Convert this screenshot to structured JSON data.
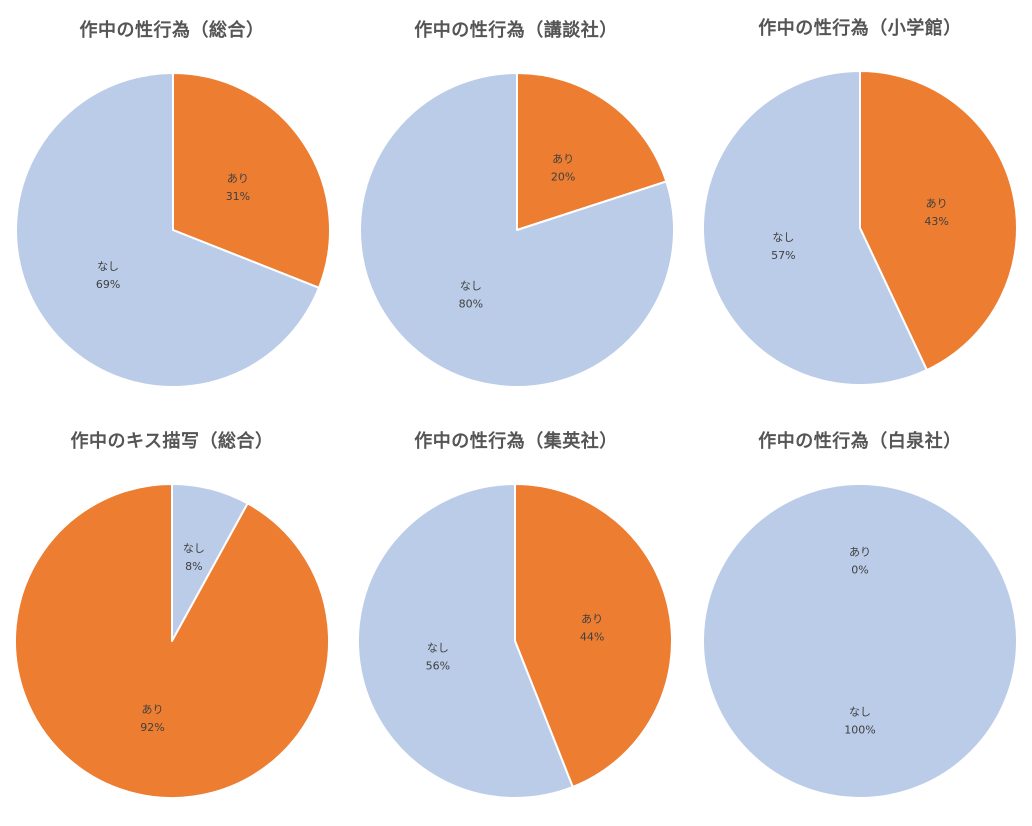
{
  "colors": {
    "ari": "#ED7D31",
    "nashi": "#BBCCE8",
    "border": "#ffffff",
    "title": "#555555",
    "label": "#404040"
  },
  "chart_data": [
    {
      "type": "pie",
      "title": "作中の性行為（総合）",
      "slices": [
        {
          "label": "あり",
          "value": 31,
          "pct_label": "31%",
          "color": "#ED7D31"
        },
        {
          "label": "なし",
          "value": 69,
          "pct_label": "69%",
          "color": "#BBCCE8"
        }
      ]
    },
    {
      "type": "pie",
      "title": "作中の性行為（講談社）",
      "slices": [
        {
          "label": "あり",
          "value": 20,
          "pct_label": "20%",
          "color": "#ED7D31"
        },
        {
          "label": "なし",
          "value": 80,
          "pct_label": "80%",
          "color": "#BBCCE8"
        }
      ]
    },
    {
      "type": "pie",
      "title": "作中の性行為（小学館）",
      "slices": [
        {
          "label": "あり",
          "value": 43,
          "pct_label": "43%",
          "color": "#ED7D31"
        },
        {
          "label": "なし",
          "value": 57,
          "pct_label": "57%",
          "color": "#BBCCE8"
        }
      ]
    },
    {
      "type": "pie",
      "title": "作中のキス描写（総合）",
      "slices": [
        {
          "label": "なし",
          "value": 8,
          "pct_label": "8%",
          "color": "#BBCCE8"
        },
        {
          "label": "あり",
          "value": 92,
          "pct_label": "92%",
          "color": "#ED7D31"
        }
      ]
    },
    {
      "type": "pie",
      "title": "作中の性行為（集英社）",
      "slices": [
        {
          "label": "あり",
          "value": 44,
          "pct_label": "44%",
          "color": "#ED7D31"
        },
        {
          "label": "なし",
          "value": 56,
          "pct_label": "56%",
          "color": "#BBCCE8"
        }
      ]
    },
    {
      "type": "pie",
      "title": "作中の性行為（白泉社）",
      "slices": [
        {
          "label": "あり",
          "value": 0,
          "pct_label": "0%",
          "color": "#ED7D31"
        },
        {
          "label": "なし",
          "value": 100,
          "pct_label": "100%",
          "color": "#BBCCE8"
        }
      ]
    }
  ]
}
